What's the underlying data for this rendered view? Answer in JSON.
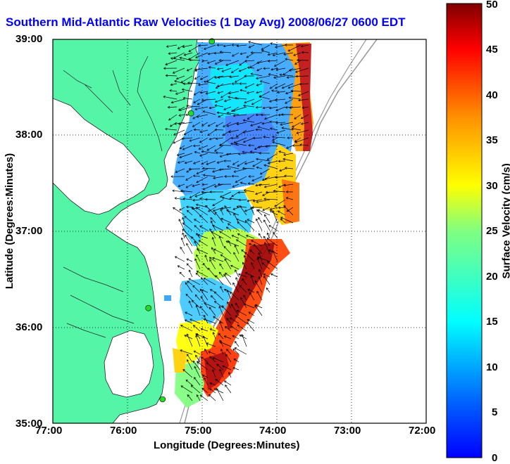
{
  "title": "Southern Mid-Atlantic Raw Velocities (1 Day Avg) 2008/06/27 0600 EDT",
  "x_axis": {
    "label": "Longitude (Degrees:Minutes)",
    "ticks": [
      "77:00",
      "76:00",
      "75:00",
      "74:00",
      "73:00",
      "72:00"
    ]
  },
  "y_axis": {
    "label": "Latitude (Degrees:Minutes)",
    "ticks": [
      "39:00",
      "38:00",
      "37:00",
      "36:00",
      "35:00"
    ]
  },
  "colorbar": {
    "label": "Surface Velocity (cm/s)",
    "ticks": [
      "50",
      "45",
      "40",
      "35",
      "30",
      "25",
      "20",
      "15",
      "10",
      "5",
      "0"
    ],
    "min": 0,
    "max": 50
  },
  "colors": {
    "land": "#55f5a8",
    "title": "#0000ff",
    "station": "#22dd22"
  },
  "extent": {
    "lon": [
      -77,
      -72
    ],
    "lat": [
      35,
      39
    ]
  },
  "stations": [
    {
      "lon": -74.87,
      "lat": 38.98
    },
    {
      "lon": -75.15,
      "lat": 38.23
    },
    {
      "lon": -75.72,
      "lat": 36.2
    },
    {
      "lon": -75.53,
      "lat": 35.25
    }
  ]
}
